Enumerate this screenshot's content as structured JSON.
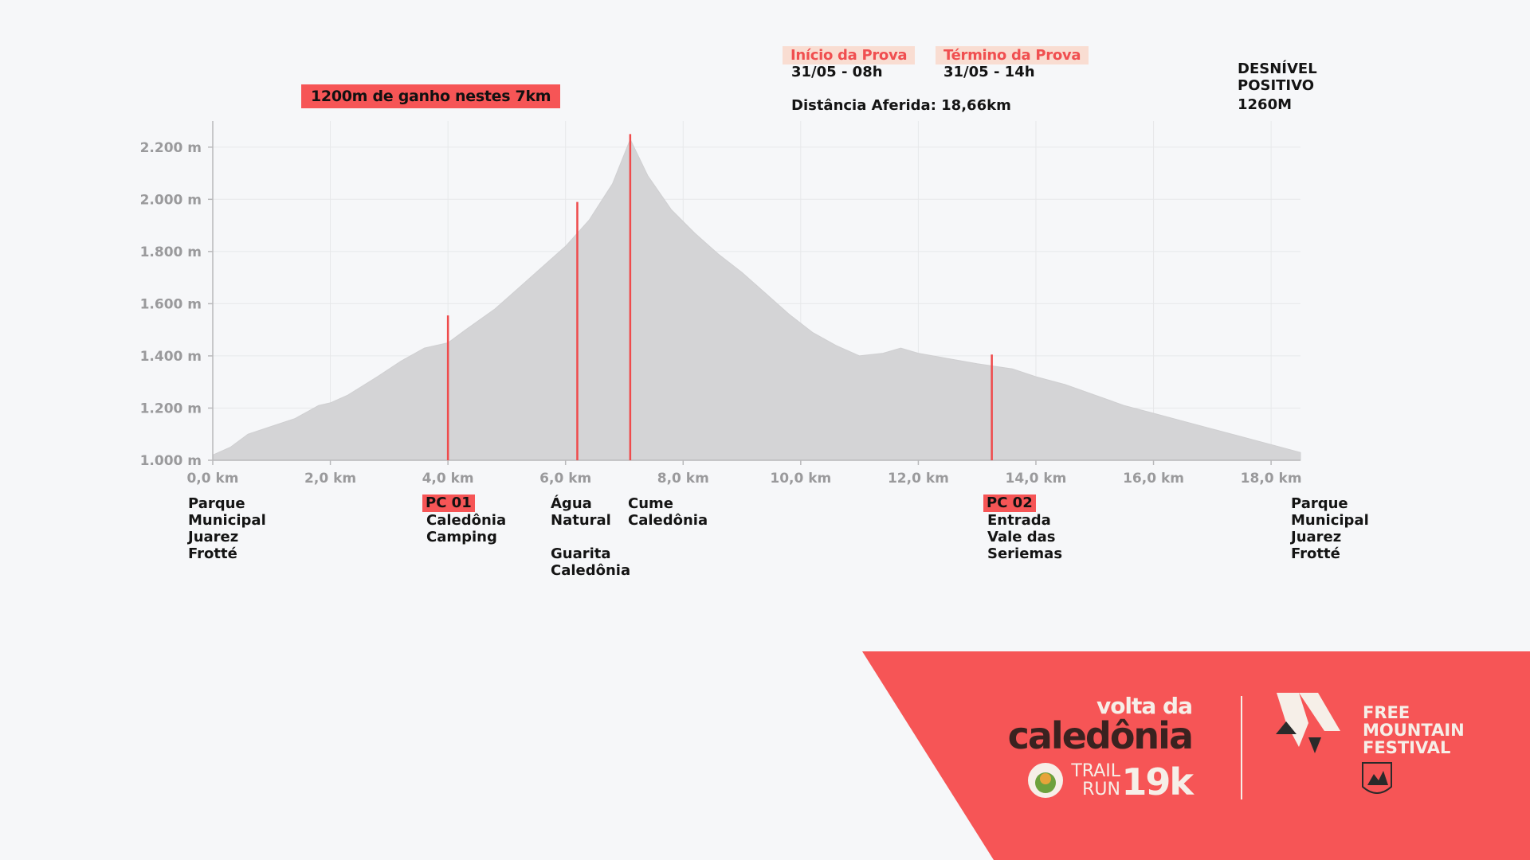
{
  "header": {
    "gain_label": "1200m de ganho nestes 7km",
    "start_label": "Início da Prova",
    "start_value": "31/05 - 08h",
    "end_label": "Término da Prova",
    "end_value": "31/05 - 14h",
    "distance": "Distância Aferida: 18,66km",
    "elevation_label_1": "DESNÍVEL",
    "elevation_label_2": "POSITIVO",
    "elevation_value": "1260M"
  },
  "checkpoints": {
    "start": "Parque\nMunicipal\nJuarez\nFrotté",
    "pc01_tag": "PC 01",
    "pc01_name": "Caledônia\nCamping",
    "agua": "Água\nNatural",
    "guarita": "Guarita\nCaledônia",
    "cume": "Cume\nCaledônia",
    "pc02_tag": "PC 02",
    "pc02_name": "Entrada\nVale das\nSeriemas",
    "finish": "Parque\nMunicipal\nJuarez\nFrotté"
  },
  "branding": {
    "event_line1": "volta da",
    "event_line2": "caledônia",
    "trail": "TRAIL",
    "run": "RUN",
    "distance": "19k",
    "festival_line1": "FREE",
    "festival_line2": "MOUNTAIN",
    "festival_line3": "FESTIVAL"
  },
  "colors": {
    "accent": "#f65556",
    "profile_fill": "#d4d4d6",
    "marker": "#ef4b4c",
    "banner": "#f65556"
  },
  "chart_data": {
    "type": "area",
    "x_unit": "km",
    "y_unit": "m",
    "xlim": [
      0,
      18.5
    ],
    "ylim": [
      1000,
      2300
    ],
    "x_ticks": [
      "0,0 km",
      "2,0 km",
      "4,0 km",
      "6,0 km",
      "8,0 km",
      "10,0 km",
      "12,0 km",
      "14,0 km",
      "16,0 km",
      "18,0 km"
    ],
    "x_tick_values": [
      0,
      2,
      4,
      6,
      8,
      10,
      12,
      14,
      16,
      18
    ],
    "y_ticks": [
      "1.000 m",
      "1.200 m",
      "1.400 m",
      "1.600 m",
      "1.800 m",
      "2.000 m",
      "2.200 m"
    ],
    "y_tick_values": [
      1000,
      1200,
      1400,
      1600,
      1800,
      2000,
      2200
    ],
    "grid": true,
    "profile": [
      [
        0,
        1020
      ],
      [
        0.3,
        1050
      ],
      [
        0.6,
        1100
      ],
      [
        1.0,
        1130
      ],
      [
        1.4,
        1160
      ],
      [
        1.8,
        1210
      ],
      [
        2.0,
        1220
      ],
      [
        2.3,
        1250
      ],
      [
        2.8,
        1320
      ],
      [
        3.2,
        1380
      ],
      [
        3.6,
        1430
      ],
      [
        4.0,
        1450
      ],
      [
        4.3,
        1500
      ],
      [
        4.8,
        1580
      ],
      [
        5.2,
        1660
      ],
      [
        5.6,
        1740
      ],
      [
        6.0,
        1820
      ],
      [
        6.4,
        1920
      ],
      [
        6.8,
        2060
      ],
      [
        7.1,
        2230
      ],
      [
        7.4,
        2090
      ],
      [
        7.8,
        1960
      ],
      [
        8.2,
        1870
      ],
      [
        8.6,
        1790
      ],
      [
        9.0,
        1720
      ],
      [
        9.4,
        1640
      ],
      [
        9.8,
        1560
      ],
      [
        10.2,
        1490
      ],
      [
        10.6,
        1440
      ],
      [
        11.0,
        1400
      ],
      [
        11.4,
        1410
      ],
      [
        11.7,
        1430
      ],
      [
        12.0,
        1410
      ],
      [
        12.5,
        1390
      ],
      [
        13.0,
        1370
      ],
      [
        13.6,
        1350
      ],
      [
        14.0,
        1320
      ],
      [
        14.5,
        1290
      ],
      [
        15.0,
        1250
      ],
      [
        15.5,
        1210
      ],
      [
        16.0,
        1180
      ],
      [
        16.5,
        1150
      ],
      [
        17.0,
        1120
      ],
      [
        17.5,
        1090
      ],
      [
        18.0,
        1060
      ],
      [
        18.5,
        1030
      ]
    ],
    "markers": [
      {
        "name": "PC 01",
        "x": 4.0,
        "y": 1555
      },
      {
        "name": "Água Natural",
        "x": 6.2,
        "y": 1990
      },
      {
        "name": "Cume Caledônia",
        "x": 7.1,
        "y": 2250
      },
      {
        "name": "PC 02",
        "x": 13.25,
        "y": 1405
      }
    ]
  }
}
